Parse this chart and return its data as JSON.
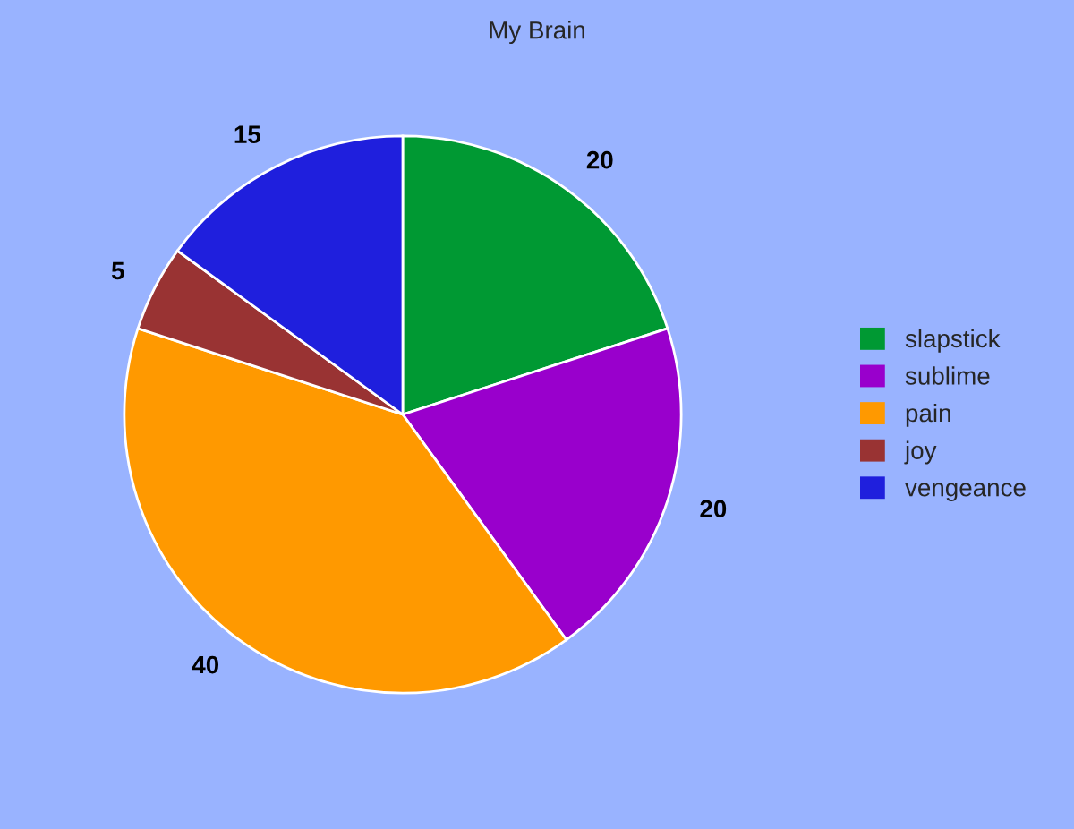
{
  "chart_data": {
    "type": "pie",
    "title": "My Brain",
    "categories": [
      "slapstick",
      "sublime",
      "pain",
      "joy",
      "vengeance"
    ],
    "values": [
      20,
      20,
      40,
      5,
      15
    ],
    "colors": [
      "#009933",
      "#9900cc",
      "#ff9900",
      "#993333",
      "#1f1fdd"
    ],
    "data_labels": true,
    "legend": "right"
  }
}
